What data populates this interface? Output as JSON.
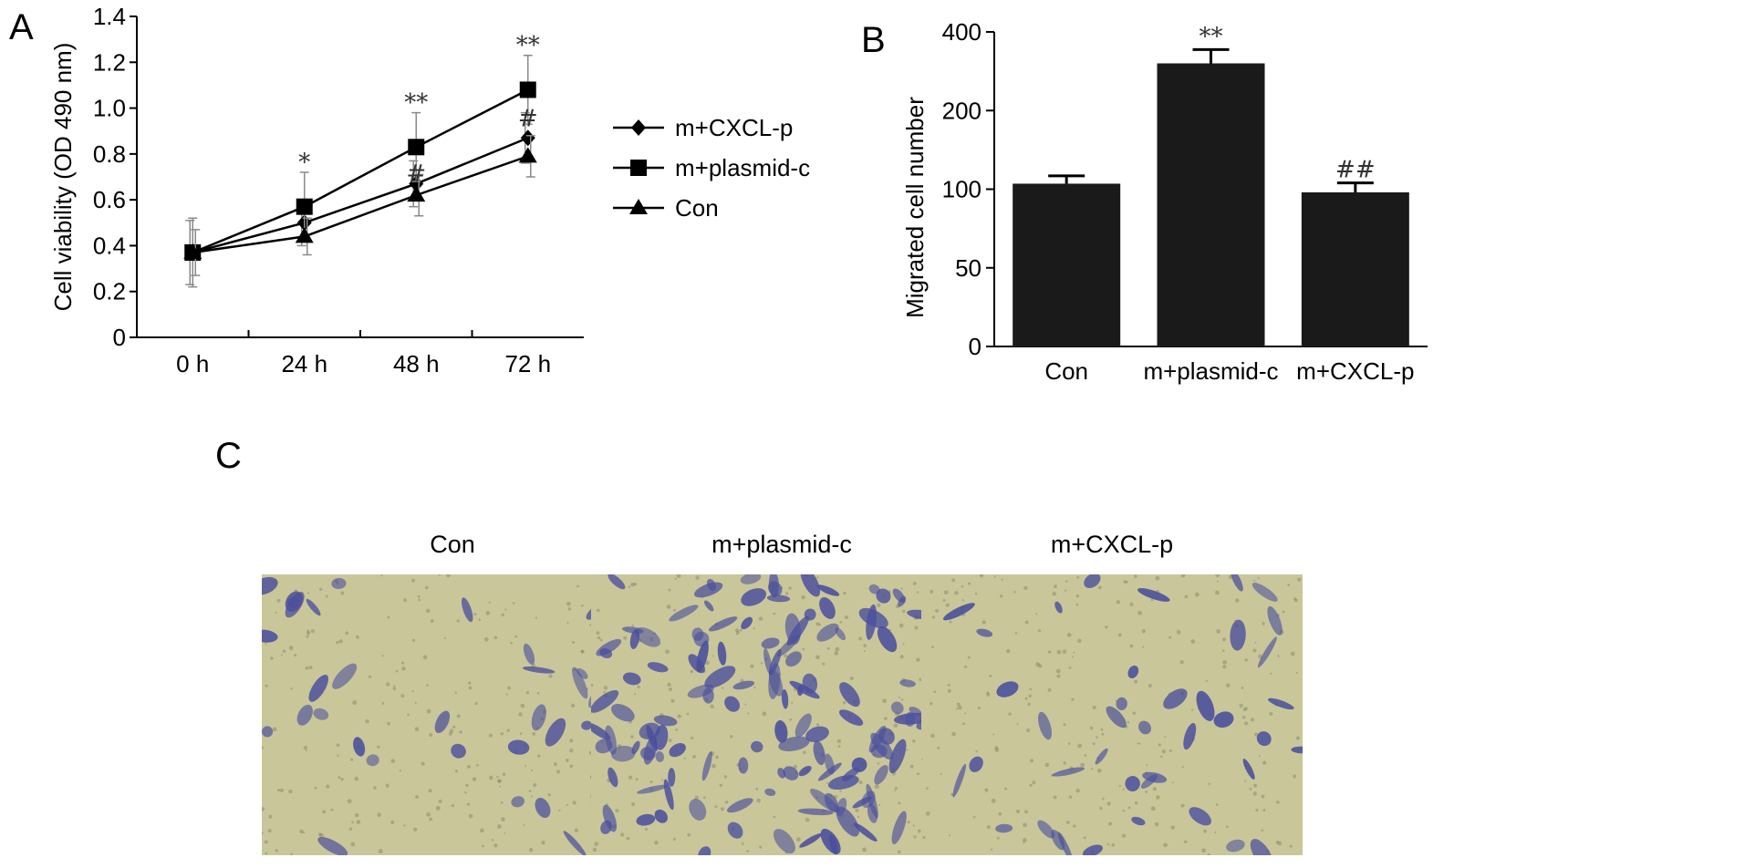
{
  "panels": {
    "a": "A",
    "b": "B",
    "c": "C"
  },
  "chart_data": [
    {
      "type": "line",
      "ylabel": "Cell viability (OD 490 nm)",
      "xlabel": "",
      "categories": [
        "0 h",
        "24 h",
        "48 h",
        "72 h"
      ],
      "ylim": [
        0,
        1.4
      ],
      "yticks": [
        "0",
        "0.2",
        "0.4",
        "0.6",
        "0.8",
        "1.0",
        "1.2",
        "1.4"
      ],
      "legend_position": "right",
      "series": [
        {
          "name": "m+CXCL-p",
          "marker": "diamond",
          "values": [
            0.37,
            0.5,
            0.67,
            0.87
          ],
          "err": [
            0.14,
            0.1,
            0.1,
            0.11
          ]
        },
        {
          "name": "m+plasmid-c",
          "marker": "square",
          "values": [
            0.37,
            0.57,
            0.83,
            1.08
          ],
          "err": [
            0.15,
            0.15,
            0.15,
            0.15
          ]
        },
        {
          "name": "Con",
          "marker": "triangle",
          "values": [
            0.37,
            0.44,
            0.62,
            0.79
          ],
          "err": [
            0.1,
            0.08,
            0.09,
            0.09
          ]
        }
      ],
      "annotations": [
        {
          "text": "*",
          "category": "24 h",
          "y": 0.77
        },
        {
          "text": "**",
          "category": "48 h",
          "y": 1.03
        },
        {
          "text": "#",
          "category": "48 h",
          "y": 0.72
        },
        {
          "text": "**",
          "category": "72 h",
          "y": 1.28
        },
        {
          "text": "#",
          "category": "72 h",
          "y": 0.96
        }
      ]
    },
    {
      "type": "bar",
      "ylabel": "Migrated cell number",
      "xlabel": "",
      "categories": [
        "Con",
        "m+plasmid-c",
        "m+CXCL-p"
      ],
      "values": [
        107,
        320,
        98
      ],
      "err": [
        10,
        35,
        10
      ],
      "ytick_values": [
        0,
        50,
        100,
        200,
        400
      ],
      "yticks": [
        "0",
        "50",
        "100",
        "200",
        "400"
      ],
      "bar_color": "#1a1a1a",
      "annotations": [
        {
          "text": "**",
          "category": "m+plasmid-c"
        },
        {
          "text": "##",
          "category": "m+CXCL-p"
        }
      ]
    }
  ],
  "micrographs": [
    {
      "label": "Con",
      "density": "sparse"
    },
    {
      "label": "m+plasmid-c",
      "density": "dense"
    },
    {
      "label": "m+CXCL-p",
      "density": "sparse"
    }
  ],
  "colors": {
    "ink": "#000000",
    "bar": "#1a1a1a",
    "error": "#8a8a8a",
    "stain": "#4b4f9c",
    "background_micro": "#c9c79a"
  }
}
